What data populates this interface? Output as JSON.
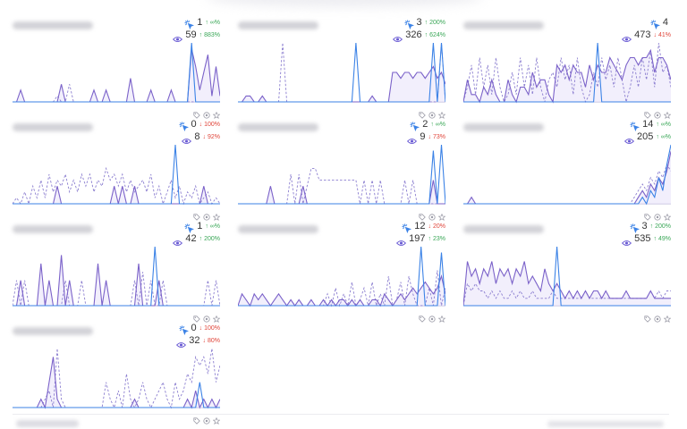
{
  "colors": {
    "solid": "#7b62c9",
    "dashed": "#8c7fd0",
    "blue": "#3b82e6",
    "fill": "#ede8fb",
    "axis": "#b8b6d8",
    "up": "#3aa757",
    "down": "#e0453a",
    "icon": "#9a9aa6"
  },
  "icons": {
    "clicks": "cursor-click-icon",
    "views": "eye-icon",
    "actions": [
      "tag-icon",
      "eye-icon",
      "star-icon"
    ]
  },
  "cards": [
    {
      "clicks": "1",
      "clicks_change": "↑ ∞%",
      "clicks_dir": "up",
      "views": "59",
      "views_change": "↑ 883%",
      "views_dir": "up",
      "solid": [
        0,
        0,
        2,
        0,
        0,
        0,
        0,
        0,
        0,
        0,
        0,
        0,
        3,
        0,
        0,
        0,
        0,
        0,
        0,
        0,
        2,
        0,
        0,
        2,
        0,
        0,
        0,
        0,
        0,
        4,
        0,
        0,
        0,
        0,
        2,
        0,
        0,
        0,
        0,
        2,
        0,
        0,
        0,
        0,
        9,
        6,
        2,
        5,
        8,
        1,
        6,
        1
      ],
      "dashed": [
        0,
        0,
        0,
        0,
        0,
        0,
        0,
        0,
        0,
        0,
        0,
        1,
        0,
        0,
        3,
        0,
        0,
        0,
        0,
        0,
        0,
        0,
        0,
        0,
        0,
        0,
        0,
        0,
        0,
        0,
        0,
        0,
        0,
        0,
        0,
        0,
        0,
        0,
        0,
        0,
        0,
        0,
        0,
        0,
        0,
        0,
        0,
        0,
        0,
        0,
        0,
        0
      ],
      "blue": [
        0,
        0,
        0,
        0,
        0,
        0,
        0,
        0,
        0,
        0,
        0,
        0,
        0,
        0,
        0,
        0,
        0,
        0,
        0,
        0,
        0,
        0,
        0,
        0,
        0,
        0,
        0,
        0,
        0,
        0,
        0,
        0,
        0,
        0,
        0,
        0,
        0,
        0,
        0,
        0,
        0,
        0,
        0,
        0,
        10,
        0,
        0,
        0,
        0,
        0,
        0,
        0
      ]
    },
    {
      "clicks": "3",
      "clicks_change": "↑ 200%",
      "clicks_dir": "up",
      "views": "326",
      "views_change": "↑ 624%",
      "views_dir": "up",
      "solid": [
        0,
        0,
        1,
        1,
        0,
        0,
        1,
        0,
        0,
        0,
        0,
        0,
        0,
        0,
        0,
        0,
        0,
        0,
        0,
        0,
        0,
        0,
        0,
        0,
        0,
        0,
        0,
        0,
        0,
        0,
        0,
        0,
        0,
        1,
        0,
        0,
        0,
        0,
        5,
        5,
        4,
        5,
        5,
        4,
        5,
        5,
        4,
        5,
        6,
        4,
        5,
        3
      ],
      "dashed": [
        0,
        0,
        0,
        0,
        0,
        0,
        0,
        0,
        0,
        0,
        0,
        10,
        0,
        0,
        0,
        0,
        0,
        0,
        0,
        0,
        0,
        0,
        0,
        0,
        0,
        0,
        0,
        0,
        0,
        0,
        0,
        0,
        0,
        0,
        0,
        0,
        0,
        0,
        0,
        0,
        0,
        0,
        0,
        0,
        0,
        0,
        0,
        0,
        0,
        0,
        10,
        0
      ],
      "blue": [
        0,
        0,
        0,
        0,
        0,
        0,
        0,
        0,
        0,
        0,
        0,
        0,
        0,
        0,
        0,
        0,
        0,
        0,
        0,
        0,
        0,
        0,
        0,
        0,
        0,
        0,
        0,
        0,
        0,
        10,
        0,
        0,
        0,
        0,
        0,
        0,
        0,
        0,
        0,
        0,
        0,
        0,
        0,
        0,
        0,
        0,
        0,
        0,
        10,
        0,
        10,
        0
      ]
    },
    {
      "clicks": "4",
      "clicks_change": "",
      "clicks_dir": "up",
      "views": "473",
      "views_change": "↓ 41%",
      "views_dir": "down",
      "solid": [
        0,
        3,
        1,
        1,
        0,
        2,
        1,
        3,
        1,
        0,
        0,
        3,
        1,
        0,
        2,
        2,
        1,
        4,
        2,
        3,
        3,
        1,
        0,
        5,
        4,
        5,
        3,
        5,
        4,
        4,
        2,
        5,
        3,
        5,
        4,
        4,
        6,
        5,
        4,
        3,
        5,
        6,
        6,
        5,
        6,
        6,
        7,
        4,
        6,
        6,
        5,
        3
      ],
      "dashed": [
        0,
        2,
        5,
        1,
        6,
        2,
        5,
        1,
        6,
        2,
        0,
        1,
        4,
        1,
        6,
        2,
        5,
        1,
        6,
        2,
        0,
        3,
        4,
        2,
        6,
        3,
        5,
        1,
        6,
        2,
        0,
        1,
        4,
        2,
        6,
        3,
        5,
        2,
        6,
        3,
        0,
        2,
        5,
        2,
        6,
        3,
        7,
        2,
        8,
        4,
        5,
        2
      ],
      "blue": [
        0,
        0,
        0,
        0,
        0,
        0,
        0,
        0,
        0,
        0,
        0,
        0,
        0,
        0,
        0,
        0,
        0,
        0,
        0,
        0,
        0,
        0,
        0,
        0,
        0,
        0,
        0,
        0,
        0,
        0,
        0,
        0,
        0,
        8,
        0,
        0,
        0,
        0,
        0,
        0,
        0,
        0,
        0,
        0,
        0,
        0,
        0,
        0,
        0,
        0,
        0,
        0
      ]
    },
    {
      "clicks": "0",
      "clicks_change": "↓ 100%",
      "clicks_dir": "down",
      "views": "8",
      "views_change": "↓ 92%",
      "views_dir": "down",
      "solid": [
        0,
        0,
        0,
        0,
        0,
        0,
        0,
        0,
        0,
        0,
        0,
        3,
        0,
        0,
        0,
        0,
        0,
        0,
        0,
        0,
        0,
        0,
        0,
        0,
        0,
        3,
        0,
        3,
        0,
        0,
        3,
        0,
        0,
        0,
        0,
        0,
        0,
        0,
        0,
        0,
        0,
        0,
        0,
        0,
        0,
        0,
        0,
        3,
        0,
        0,
        0,
        0
      ],
      "dashed": [
        0,
        1,
        0,
        2,
        0,
        3,
        1,
        4,
        1,
        5,
        2,
        4,
        3,
        5,
        2,
        4,
        2,
        5,
        3,
        5,
        2,
        4,
        3,
        6,
        4,
        5,
        3,
        5,
        2,
        4,
        2,
        3,
        4,
        2,
        5,
        1,
        3,
        0,
        2,
        4,
        1,
        3,
        0,
        2,
        1,
        3,
        0,
        1,
        2,
        0,
        1,
        0
      ],
      "blue": [
        0,
        0,
        0,
        0,
        0,
        0,
        0,
        0,
        0,
        0,
        0,
        0,
        0,
        0,
        0,
        0,
        0,
        0,
        0,
        0,
        0,
        0,
        0,
        0,
        0,
        0,
        0,
        0,
        0,
        0,
        0,
        0,
        0,
        0,
        0,
        0,
        0,
        0,
        0,
        0,
        10,
        0,
        0,
        0,
        0,
        0,
        0,
        0,
        0,
        0,
        0,
        0
      ]
    },
    {
      "clicks": "2",
      "clicks_change": "↑ ∞%",
      "clicks_dir": "up",
      "views": "9",
      "views_change": "↓ 73%",
      "views_dir": "down",
      "solid": [
        0,
        0,
        0,
        0,
        0,
        0,
        0,
        0,
        3,
        0,
        0,
        0,
        0,
        0,
        0,
        0,
        3,
        0,
        0,
        0,
        0,
        0,
        0,
        0,
        0,
        0,
        0,
        0,
        0,
        0,
        0,
        0,
        0,
        0,
        0,
        0,
        0,
        0,
        0,
        0,
        0,
        0,
        0,
        0,
        0,
        0,
        0,
        0,
        4,
        0,
        0,
        0
      ],
      "dashed": [
        0,
        0,
        0,
        0,
        0,
        0,
        0,
        0,
        0,
        0,
        0,
        0,
        0,
        5,
        0,
        5,
        0,
        3,
        6,
        6,
        4,
        4,
        4,
        4,
        4,
        4,
        4,
        4,
        4,
        4,
        0,
        4,
        0,
        4,
        0,
        4,
        0,
        0,
        0,
        0,
        0,
        4,
        0,
        4,
        0,
        0,
        0,
        0,
        0,
        0,
        0,
        0
      ],
      "blue": [
        0,
        0,
        0,
        0,
        0,
        0,
        0,
        0,
        0,
        0,
        0,
        0,
        0,
        0,
        0,
        0,
        0,
        0,
        0,
        0,
        0,
        0,
        0,
        0,
        0,
        0,
        0,
        0,
        0,
        0,
        0,
        0,
        0,
        0,
        0,
        0,
        0,
        0,
        0,
        0,
        0,
        0,
        0,
        0,
        0,
        0,
        0,
        0,
        9,
        0,
        10,
        0
      ]
    },
    {
      "clicks": "14",
      "clicks_change": "↑ ∞%",
      "clicks_dir": "up",
      "views": "205",
      "views_change": "↑ ∞%",
      "views_dir": "up",
      "solid": [
        0,
        0,
        1,
        0,
        0,
        0,
        0,
        0,
        0,
        0,
        0,
        0,
        0,
        0,
        0,
        0,
        0,
        0,
        0,
        0,
        0,
        0,
        0,
        0,
        0,
        0,
        0,
        0,
        0,
        0,
        0,
        0,
        0,
        0,
        0,
        0,
        0,
        0,
        0,
        0,
        0,
        0,
        0,
        1,
        2,
        1,
        3,
        2,
        4,
        3,
        5,
        8
      ],
      "dashed": [
        0,
        0,
        0,
        0,
        0,
        0,
        0,
        0,
        0,
        0,
        0,
        0,
        0,
        0,
        0,
        0,
        0,
        0,
        0,
        0,
        0,
        0,
        0,
        0,
        0,
        0,
        0,
        0,
        0,
        0,
        0,
        0,
        0,
        0,
        0,
        0,
        0,
        0,
        0,
        0,
        0,
        0,
        1,
        2,
        3,
        2,
        4,
        3,
        5,
        4,
        6,
        5
      ],
      "blue": [
        0,
        0,
        0,
        0,
        0,
        0,
        0,
        0,
        0,
        0,
        0,
        0,
        0,
        0,
        0,
        0,
        0,
        0,
        0,
        0,
        0,
        0,
        0,
        0,
        0,
        0,
        0,
        0,
        0,
        0,
        0,
        0,
        0,
        0,
        0,
        0,
        0,
        0,
        0,
        0,
        0,
        0,
        0,
        0,
        1,
        0,
        2,
        1,
        4,
        2,
        6,
        9
      ]
    },
    {
      "clicks": "1",
      "clicks_change": "↑ ∞%",
      "clicks_dir": "up",
      "views": "42",
      "views_change": "↑ 200%",
      "views_dir": "up",
      "solid": [
        0,
        0,
        3,
        0,
        0,
        0,
        0,
        5,
        0,
        3,
        0,
        0,
        6,
        0,
        3,
        0,
        0,
        0,
        0,
        0,
        0,
        5,
        0,
        3,
        0,
        0,
        0,
        0,
        0,
        0,
        0,
        5,
        0,
        0,
        0,
        0,
        3,
        0,
        0,
        0,
        0,
        0,
        0,
        0,
        0,
        0,
        0,
        0,
        0,
        0,
        0,
        0
      ],
      "dashed": [
        0,
        3,
        0,
        3,
        0,
        0,
        0,
        0,
        0,
        0,
        0,
        0,
        0,
        3,
        0,
        0,
        0,
        3,
        0,
        0,
        0,
        0,
        0,
        0,
        0,
        0,
        0,
        0,
        0,
        0,
        3,
        0,
        4,
        0,
        3,
        0,
        0,
        3,
        0,
        0,
        0,
        0,
        0,
        0,
        0,
        0,
        0,
        0,
        3,
        0,
        3,
        0
      ],
      "blue": [
        0,
        0,
        0,
        0,
        0,
        0,
        0,
        0,
        0,
        0,
        0,
        0,
        0,
        0,
        0,
        0,
        0,
        0,
        0,
        0,
        0,
        0,
        0,
        0,
        0,
        0,
        0,
        0,
        0,
        0,
        0,
        0,
        0,
        0,
        0,
        7,
        0,
        0,
        0,
        0,
        0,
        0,
        0,
        0,
        0,
        0,
        0,
        0,
        0,
        0,
        0,
        0
      ]
    },
    {
      "clicks": "12",
      "clicks_change": "↓ 20%",
      "clicks_dir": "down",
      "views": "197",
      "views_change": "↑ 23%",
      "views_dir": "up",
      "solid": [
        0,
        2,
        1,
        0,
        2,
        1,
        2,
        1,
        0,
        1,
        2,
        1,
        0,
        1,
        0,
        1,
        0,
        0,
        1,
        0,
        0,
        1,
        0,
        1,
        0,
        1,
        1,
        0,
        1,
        0,
        1,
        0,
        0,
        1,
        1,
        0,
        2,
        1,
        0,
        1,
        2,
        1,
        2,
        3,
        2,
        3,
        4,
        3,
        2,
        3,
        5,
        2
      ],
      "dashed": [
        0,
        0,
        0,
        0,
        0,
        0,
        0,
        0,
        0,
        0,
        0,
        0,
        0,
        0,
        0,
        0,
        0,
        0,
        0,
        0,
        0,
        0,
        2,
        0,
        3,
        0,
        2,
        0,
        4,
        0,
        1,
        3,
        0,
        4,
        0,
        2,
        0,
        5,
        0,
        1,
        4,
        0,
        5,
        2,
        0,
        0,
        0,
        3,
        0,
        6,
        0,
        3
      ],
      "blue": [
        0,
        0,
        0,
        0,
        0,
        0,
        0,
        0,
        0,
        0,
        0,
        0,
        0,
        0,
        0,
        0,
        0,
        0,
        0,
        0,
        0,
        0,
        0,
        0,
        0,
        0,
        0,
        0,
        0,
        0,
        0,
        0,
        0,
        0,
        0,
        0,
        0,
        0,
        0,
        0,
        0,
        0,
        0,
        0,
        0,
        10,
        0,
        0,
        0,
        0,
        9,
        0
      ]
    },
    {
      "clicks": "3",
      "clicks_change": "↑ 200%",
      "clicks_dir": "up",
      "views": "535",
      "views_change": "↑ 49%",
      "views_dir": "up",
      "solid": [
        0,
        6,
        4,
        5,
        3,
        5,
        4,
        6,
        3,
        5,
        4,
        5,
        3,
        5,
        4,
        6,
        3,
        4,
        3,
        2,
        5,
        3,
        2,
        3,
        2,
        1,
        2,
        1,
        2,
        1,
        2,
        1,
        2,
        2,
        1,
        2,
        1,
        1,
        1,
        1,
        2,
        1,
        1,
        1,
        1,
        1,
        2,
        1,
        1,
        1,
        1,
        1
      ],
      "dashed": [
        0,
        3,
        2,
        3,
        2,
        2,
        1,
        2,
        1,
        2,
        1,
        1,
        2,
        1,
        2,
        1,
        1,
        2,
        1,
        1,
        1,
        1,
        2,
        1,
        1,
        1,
        1,
        1,
        1,
        1,
        2,
        1,
        1,
        1,
        1,
        1,
        1,
        1,
        1,
        1,
        1,
        1,
        1,
        1,
        1,
        1,
        2,
        1,
        2,
        1,
        2,
        2
      ],
      "blue": [
        0,
        0,
        0,
        0,
        0,
        0,
        0,
        0,
        0,
        0,
        0,
        0,
        0,
        0,
        0,
        0,
        0,
        0,
        0,
        0,
        0,
        0,
        0,
        8,
        0,
        0,
        0,
        0,
        0,
        0,
        0,
        0,
        0,
        0,
        0,
        0,
        0,
        0,
        0,
        0,
        0,
        0,
        0,
        0,
        0,
        0,
        0,
        0,
        0,
        0,
        0,
        0
      ]
    },
    {
      "clicks": "0",
      "clicks_change": "↓ 100%",
      "clicks_dir": "down",
      "views": "32",
      "views_change": "↓ 80%",
      "views_dir": "down",
      "solid": [
        0,
        0,
        0,
        0,
        0,
        0,
        0,
        1,
        0,
        3,
        6,
        1,
        0,
        0,
        0,
        0,
        0,
        0,
        0,
        0,
        0,
        0,
        0,
        0,
        0,
        0,
        0,
        0,
        0,
        0,
        1,
        0,
        0,
        0,
        0,
        0,
        0,
        0,
        0,
        0,
        0,
        0,
        0,
        1,
        0,
        2,
        0,
        1,
        0,
        1,
        0,
        1
      ],
      "dashed": [
        0,
        0,
        0,
        0,
        0,
        0,
        0,
        0,
        1,
        2,
        0,
        7,
        1,
        0,
        0,
        0,
        0,
        0,
        0,
        0,
        0,
        0,
        0,
        3,
        1,
        0,
        2,
        0,
        4,
        1,
        0,
        1,
        3,
        1,
        0,
        1,
        2,
        3,
        1,
        0,
        3,
        1,
        2,
        4,
        3,
        6,
        5,
        6,
        4,
        7,
        3,
        5
      ],
      "blue": [
        0,
        0,
        0,
        0,
        0,
        0,
        0,
        0,
        0,
        0,
        0,
        0,
        0,
        0,
        0,
        0,
        0,
        0,
        0,
        0,
        0,
        0,
        0,
        0,
        0,
        0,
        0,
        0,
        0,
        0,
        0,
        0,
        0,
        0,
        0,
        0,
        0,
        0,
        0,
        0,
        0,
        0,
        0,
        0,
        0,
        0,
        3,
        0,
        0,
        0,
        0,
        0
      ]
    }
  ]
}
